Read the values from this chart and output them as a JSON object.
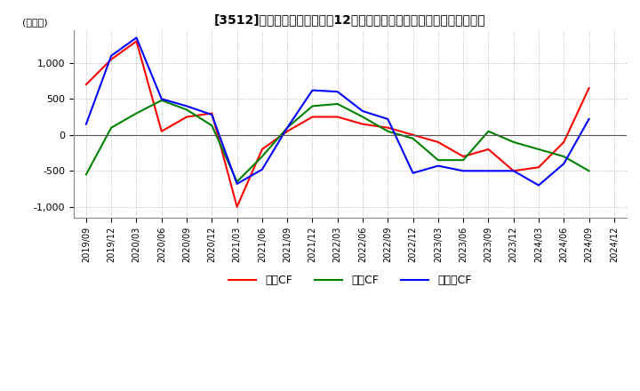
{
  "title": "[3512]　キャッシュフローの12か月移動合計の対前年同期増減額の推移",
  "ylabel": "(百万円)",
  "ylim": [
    -1150,
    1450
  ],
  "yticks": [
    -1000,
    -500,
    0,
    500,
    1000
  ],
  "legend_labels": [
    "営業CF",
    "投資CF",
    "フリーCF"
  ],
  "legend_colors": [
    "#ff0000",
    "#008000",
    "#0000ff"
  ],
  "x_labels": [
    "2019/09",
    "2019/12",
    "2020/03",
    "2020/06",
    "2020/09",
    "2020/12",
    "2021/03",
    "2021/06",
    "2021/09",
    "2021/12",
    "2022/03",
    "2022/06",
    "2022/09",
    "2022/12",
    "2023/03",
    "2023/06",
    "2023/09",
    "2023/12",
    "2024/03",
    "2024/06",
    "2024/09",
    "2024/12"
  ],
  "operating_cf": [
    700,
    1050,
    1300,
    50,
    250,
    300,
    -1000,
    -200,
    50,
    250,
    250,
    150,
    100,
    0,
    -100,
    -300,
    -200,
    -500,
    -450,
    -100,
    650,
    null
  ],
  "investing_cf": [
    -550,
    100,
    300,
    480,
    350,
    130,
    -650,
    -300,
    100,
    400,
    430,
    250,
    50,
    -50,
    -350,
    -350,
    50,
    -100,
    -200,
    -300,
    -500,
    null
  ],
  "free_cf": [
    150,
    1100,
    1350,
    500,
    400,
    280,
    -680,
    -480,
    100,
    620,
    600,
    330,
    220,
    -530,
    -430,
    -500,
    -500,
    -500,
    -700,
    -400,
    220,
    null
  ],
  "grid_color": "#aaaaaa",
  "bg_color": "#ffffff",
  "line_width": 1.5
}
